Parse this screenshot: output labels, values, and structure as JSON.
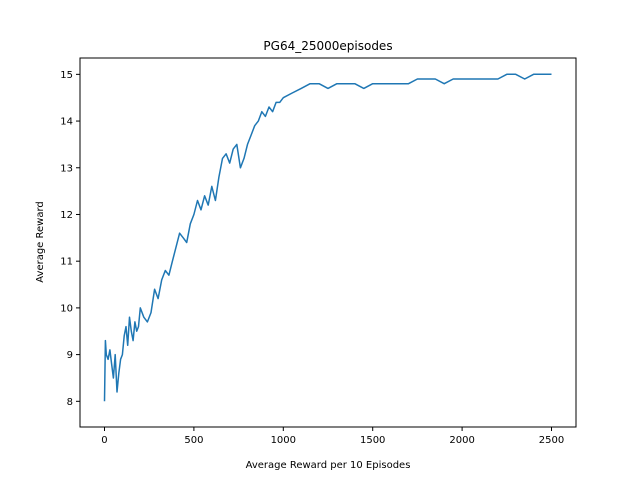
{
  "chart_data": {
    "type": "line",
    "title": "PG64_25000episodes",
    "xlabel": "Average Reward per 10 Episodes",
    "ylabel": "Average Reward",
    "xlim": [
      -137,
      2637
    ],
    "ylim": [
      7.45,
      15.35
    ],
    "xticks": [
      0,
      500,
      1000,
      1500,
      2000,
      2500
    ],
    "yticks": [
      8,
      9,
      10,
      11,
      12,
      13,
      14,
      15
    ],
    "grid": false,
    "legend": "none",
    "series": [
      {
        "color": "#1f77b4",
        "x": [
          0,
          5,
          10,
          20,
          30,
          40,
          50,
          60,
          70,
          80,
          90,
          100,
          110,
          120,
          130,
          140,
          150,
          160,
          170,
          180,
          190,
          200,
          220,
          240,
          260,
          280,
          300,
          320,
          340,
          360,
          380,
          400,
          420,
          440,
          460,
          480,
          500,
          520,
          540,
          560,
          580,
          600,
          620,
          640,
          660,
          680,
          700,
          720,
          740,
          760,
          780,
          800,
          820,
          840,
          860,
          880,
          900,
          920,
          940,
          960,
          980,
          1000,
          1050,
          1100,
          1150,
          1200,
          1250,
          1300,
          1350,
          1400,
          1450,
          1500,
          1550,
          1600,
          1650,
          1700,
          1750,
          1800,
          1850,
          1900,
          1950,
          2000,
          2050,
          2100,
          2150,
          2200,
          2250,
          2300,
          2350,
          2400,
          2450,
          2500
        ],
        "y": [
          8.0,
          9.3,
          9.0,
          8.9,
          9.1,
          8.8,
          8.5,
          9.0,
          8.2,
          8.6,
          8.9,
          9.0,
          9.4,
          9.6,
          9.2,
          9.8,
          9.5,
          9.3,
          9.7,
          9.5,
          9.6,
          10.0,
          9.8,
          9.7,
          9.9,
          10.4,
          10.2,
          10.6,
          10.8,
          10.7,
          11.0,
          11.3,
          11.6,
          11.5,
          11.4,
          11.8,
          12.0,
          12.3,
          12.1,
          12.4,
          12.2,
          12.6,
          12.3,
          12.8,
          13.2,
          13.3,
          13.1,
          13.4,
          13.5,
          13.0,
          13.2,
          13.5,
          13.7,
          13.9,
          14.0,
          14.2,
          14.1,
          14.3,
          14.2,
          14.4,
          14.4,
          14.5,
          14.6,
          14.7,
          14.8,
          14.8,
          14.7,
          14.8,
          14.8,
          14.8,
          14.7,
          14.8,
          14.8,
          14.8,
          14.8,
          14.8,
          14.9,
          14.9,
          14.9,
          14.8,
          14.9,
          14.9,
          14.9,
          14.9,
          14.9,
          14.9,
          15.0,
          15.0,
          14.9,
          15.0,
          15.0,
          15.0
        ]
      }
    ]
  }
}
